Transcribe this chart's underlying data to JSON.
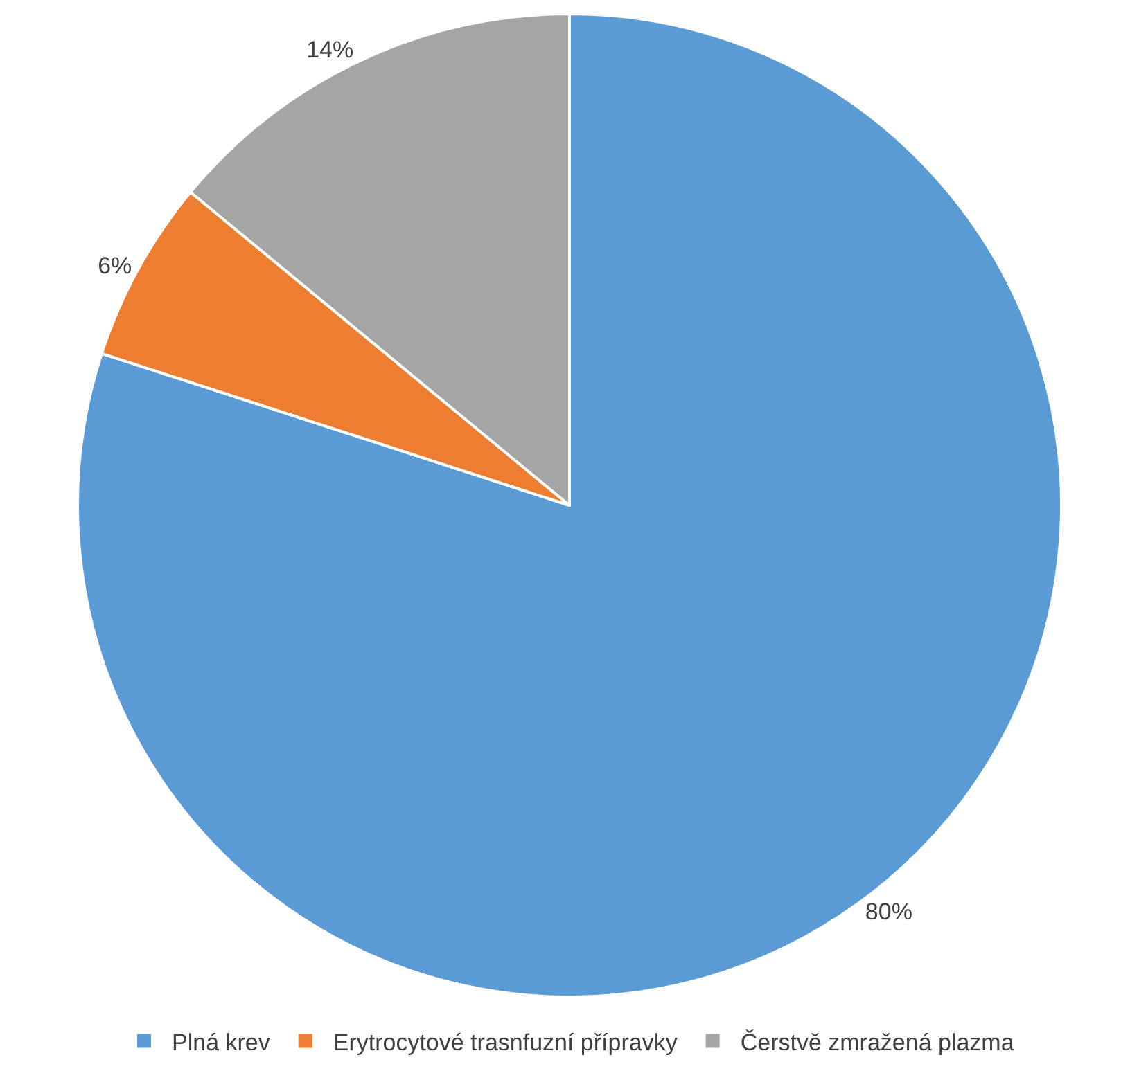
{
  "chart_data": {
    "type": "pie",
    "categories": [
      "Plná krev",
      "Erytrocytové trasnfuzní přípravky",
      "Čerstvě zmražená plazma"
    ],
    "values": [
      80,
      6,
      14
    ],
    "colors": [
      "#5b9bd5",
      "#ed7d31",
      "#a5a5a5"
    ],
    "value_labels": [
      "80%",
      "6%",
      "14%"
    ],
    "legend": "bottom"
  }
}
